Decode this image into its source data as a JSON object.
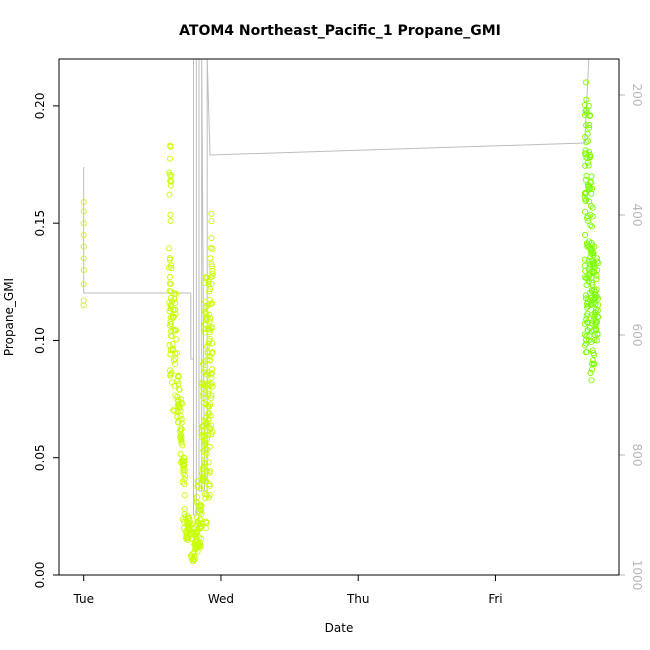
{
  "chart_data": {
    "type": "scatter",
    "title": "ATOM4 Northeast_Pacific_1 Propane_GMI",
    "xlabel": "Date",
    "ylabel": "Propane_GMI",
    "x_ticks": [
      "Tue",
      "Wed",
      "Thu",
      "Fri"
    ],
    "x_tick_days": [
      0,
      1,
      2,
      3
    ],
    "xlim_days": [
      -0.18,
      3.9
    ],
    "ylim": [
      0,
      0.22
    ],
    "y_ticks": [
      0.0,
      0.05,
      0.1,
      0.15,
      0.2
    ],
    "y_tick_labels": [
      "0.00",
      "0.05",
      "0.10",
      "0.15",
      "0.20"
    ],
    "y2_ticks": [
      200,
      400,
      600,
      800,
      1000
    ],
    "y2_lim": [
      1000,
      140
    ],
    "y2_reversed": true,
    "grid": false,
    "colors": {
      "early_points": "#d4ea3a",
      "dense_points": "#c8ff00",
      "late_points": "#7cff00",
      "altitude_line": "#bdbdbd",
      "axis": "#000000",
      "right_axis": "#b8b8b8"
    },
    "series": [
      {
        "kind": "points",
        "color": "#d4ea3a",
        "points": [
          [
            0.0,
            0.115
          ],
          [
            0.0,
            0.117
          ],
          [
            0.0,
            0.124
          ],
          [
            0.0,
            0.13
          ],
          [
            0.0,
            0.135
          ],
          [
            0.0,
            0.14
          ],
          [
            0.0,
            0.145
          ],
          [
            0.0,
            0.15
          ],
          [
            0.0,
            0.155
          ],
          [
            0.0,
            0.159
          ]
        ]
      },
      {
        "kind": "dense",
        "color": "#c8ff00",
        "segments": [
          {
            "x0": 0.62,
            "x1": 0.64,
            "ylo": 0.085,
            "yhi": 0.183,
            "n": 40
          },
          {
            "x0": 0.64,
            "x1": 0.68,
            "ylo": 0.07,
            "yhi": 0.12,
            "n": 30
          },
          {
            "x0": 0.68,
            "x1": 0.7,
            "ylo": 0.065,
            "yhi": 0.085,
            "n": 20
          },
          {
            "x0": 0.7,
            "x1": 0.72,
            "ylo": 0.048,
            "yhi": 0.075,
            "n": 20
          },
          {
            "x0": 0.72,
            "x1": 0.74,
            "ylo": 0.02,
            "yhi": 0.05,
            "n": 20
          },
          {
            "x0": 0.74,
            "x1": 0.78,
            "ylo": 0.015,
            "yhi": 0.025,
            "n": 25
          },
          {
            "x0": 0.78,
            "x1": 0.82,
            "ylo": 0.006,
            "yhi": 0.02,
            "n": 25
          },
          {
            "x0": 0.82,
            "x1": 0.84,
            "ylo": 0.01,
            "yhi": 0.04,
            "n": 20
          },
          {
            "x0": 0.84,
            "x1": 0.86,
            "ylo": 0.012,
            "yhi": 0.03,
            "n": 20
          },
          {
            "x0": 0.86,
            "x1": 0.88,
            "ylo": 0.04,
            "yhi": 0.09,
            "n": 30
          },
          {
            "x0": 0.88,
            "x1": 0.9,
            "ylo": 0.02,
            "yhi": 0.127,
            "n": 40
          },
          {
            "x0": 0.9,
            "x1": 0.92,
            "ylo": 0.033,
            "yhi": 0.125,
            "n": 40
          },
          {
            "x0": 0.92,
            "x1": 0.94,
            "ylo": 0.06,
            "yhi": 0.154,
            "n": 35
          }
        ]
      },
      {
        "kind": "dense",
        "color": "#7cff00",
        "segments": [
          {
            "x0": 3.65,
            "x1": 3.67,
            "ylo": 0.095,
            "yhi": 0.21,
            "n": 50
          },
          {
            "x0": 3.67,
            "x1": 3.69,
            "ylo": 0.1,
            "yhi": 0.2,
            "n": 40
          },
          {
            "x0": 3.69,
            "x1": 3.71,
            "ylo": 0.083,
            "yhi": 0.17,
            "n": 40
          },
          {
            "x0": 3.71,
            "x1": 3.73,
            "ylo": 0.09,
            "yhi": 0.14,
            "n": 30
          },
          {
            "x0": 3.73,
            "x1": 3.75,
            "ylo": 0.1,
            "yhi": 0.135,
            "n": 20
          }
        ]
      },
      {
        "kind": "altitude-line",
        "color": "#bdbdbd",
        "axis": "y2",
        "points": [
          [
            0.0,
            320
          ],
          [
            0.0,
            530
          ],
          [
            0.78,
            530
          ],
          [
            0.78,
            640
          ],
          [
            0.8,
            640
          ],
          [
            0.8,
            140
          ],
          [
            0.8,
            900
          ],
          [
            0.82,
            900
          ],
          [
            0.82,
            140
          ],
          [
            0.84,
            140
          ],
          [
            0.84,
            860
          ],
          [
            0.86,
            860
          ],
          [
            0.86,
            140
          ],
          [
            0.88,
            860
          ],
          [
            0.9,
            860
          ],
          [
            0.9,
            140
          ],
          [
            0.92,
            300
          ],
          [
            3.65,
            280
          ],
          [
            3.68,
            140
          ]
        ]
      }
    ]
  }
}
